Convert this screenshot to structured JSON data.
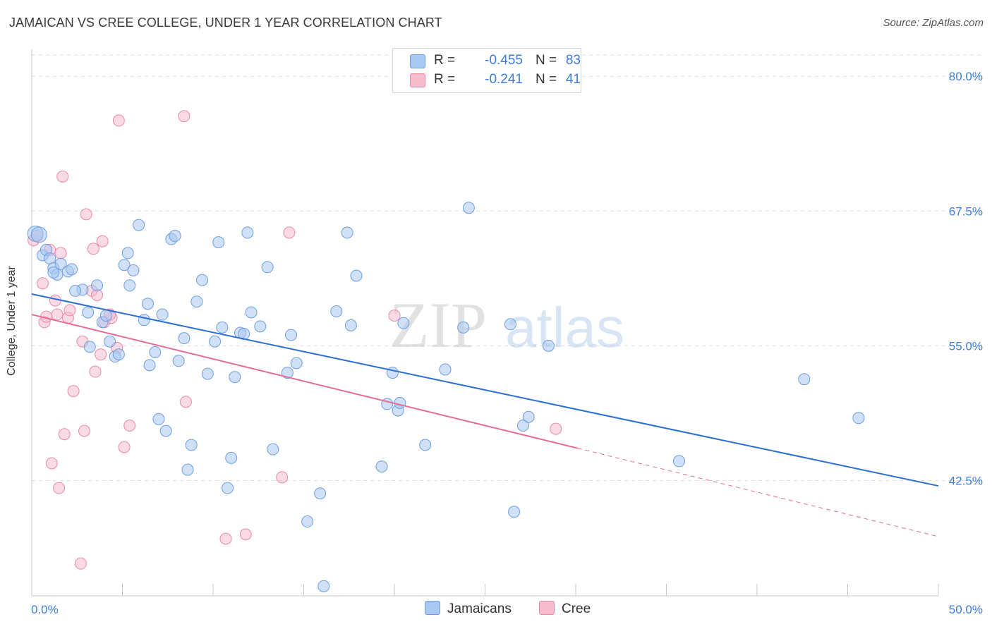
{
  "title": "JAMAICAN VS CREE COLLEGE, UNDER 1 YEAR CORRELATION CHART",
  "source": "Source: ZipAtlas.com",
  "watermark": {
    "zip": "ZIP",
    "atlas": "atlas"
  },
  "legend": {
    "rows": [
      {
        "r_label": "R =",
        "r_value": "-0.455",
        "n_label": "N =",
        "n_value": "83",
        "color": "#a9c8f0"
      },
      {
        "r_label": "R =",
        "r_value": "-0.241",
        "n_label": "N =",
        "n_value": "41",
        "color": "#f6bccd"
      }
    ]
  },
  "bottom_legend": {
    "series1": "Jamaicans",
    "series2": "Cree"
  },
  "colors": {
    "blue_fill": "#a9c8f0",
    "blue_stroke": "#6d9ee0",
    "blue_line": "#2b6fd1",
    "pink_fill": "#f6bccd",
    "pink_stroke": "#e98aa8",
    "pink_line": "#e56b97",
    "grid": "#dddddd",
    "axis_text": "#3b7dd8"
  },
  "chart_data": {
    "type": "scatter",
    "title": "JAMAICAN VS CREE COLLEGE, UNDER 1 YEAR CORRELATION CHART",
    "xlabel": "",
    "ylabel": "College, Under 1 year",
    "xlim": [
      0,
      50
    ],
    "ylim": [
      31.8,
      82.5
    ],
    "x_tick_labels": [
      "0.0%",
      "50.0%"
    ],
    "y_ticks": [
      42.5,
      55.0,
      67.5,
      80.0
    ],
    "y_tick_labels": [
      "42.5%",
      "55.0%",
      "67.5%",
      "80.0%"
    ],
    "series": [
      {
        "name": "Jamaicans",
        "R": -0.455,
        "N": 83,
        "trend": {
          "x": [
            0,
            50
          ],
          "y": [
            59.8,
            42.0
          ]
        },
        "points": [
          [
            0.2,
            65.4
          ],
          [
            0.4,
            65.3
          ],
          [
            0.6,
            63.4
          ],
          [
            0.8,
            63.9
          ],
          [
            1.0,
            63.1
          ],
          [
            1.2,
            62.2
          ],
          [
            1.4,
            61.6
          ],
          [
            1.6,
            62.6
          ],
          [
            2.0,
            61.9
          ],
          [
            2.2,
            62.1
          ],
          [
            2.8,
            60.2
          ],
          [
            2.4,
            60.1
          ],
          [
            3.1,
            58.1
          ],
          [
            3.2,
            54.9
          ],
          [
            3.6,
            60.6
          ],
          [
            3.9,
            57.2
          ],
          [
            4.1,
            57.8
          ],
          [
            4.3,
            55.4
          ],
          [
            4.6,
            54.0
          ],
          [
            4.8,
            54.2
          ],
          [
            5.1,
            62.5
          ],
          [
            5.3,
            63.6
          ],
          [
            5.4,
            60.6
          ],
          [
            5.6,
            62.0
          ],
          [
            5.9,
            66.2
          ],
          [
            6.2,
            57.4
          ],
          [
            6.4,
            58.9
          ],
          [
            6.5,
            53.2
          ],
          [
            6.8,
            54.4
          ],
          [
            7.0,
            48.2
          ],
          [
            7.2,
            57.9
          ],
          [
            7.4,
            47.1
          ],
          [
            7.7,
            64.9
          ],
          [
            7.9,
            65.2
          ],
          [
            8.1,
            53.6
          ],
          [
            8.4,
            55.7
          ],
          [
            8.6,
            43.5
          ],
          [
            8.8,
            45.8
          ],
          [
            9.1,
            59.1
          ],
          [
            9.4,
            61.1
          ],
          [
            9.7,
            52.4
          ],
          [
            10.1,
            55.4
          ],
          [
            10.3,
            64.6
          ],
          [
            10.5,
            56.7
          ],
          [
            10.8,
            41.8
          ],
          [
            11.0,
            44.6
          ],
          [
            11.2,
            52.1
          ],
          [
            11.5,
            56.2
          ],
          [
            11.7,
            56.1
          ],
          [
            11.9,
            65.5
          ],
          [
            12.1,
            58.1
          ],
          [
            12.6,
            56.8
          ],
          [
            13.0,
            62.3
          ],
          [
            13.3,
            45.4
          ],
          [
            14.1,
            52.5
          ],
          [
            14.3,
            56.0
          ],
          [
            14.6,
            53.4
          ],
          [
            15.2,
            38.7
          ],
          [
            15.9,
            41.3
          ],
          [
            16.1,
            32.7
          ],
          [
            16.8,
            58.2
          ],
          [
            17.4,
            65.5
          ],
          [
            17.6,
            56.9
          ],
          [
            17.9,
            61.5
          ],
          [
            19.3,
            43.8
          ],
          [
            19.6,
            49.6
          ],
          [
            19.9,
            52.5
          ],
          [
            20.2,
            49.0
          ],
          [
            20.3,
            49.7
          ],
          [
            20.5,
            57.1
          ],
          [
            21.7,
            45.8
          ],
          [
            22.8,
            52.8
          ],
          [
            23.8,
            56.7
          ],
          [
            24.1,
            67.8
          ],
          [
            26.4,
            57.0
          ],
          [
            26.6,
            39.6
          ],
          [
            27.1,
            47.6
          ],
          [
            27.4,
            48.4
          ],
          [
            28.5,
            55.0
          ],
          [
            35.7,
            44.3
          ],
          [
            42.6,
            51.9
          ],
          [
            45.6,
            48.3
          ],
          [
            1.2,
            61.8
          ]
        ]
      },
      {
        "name": "Cree",
        "R": -0.241,
        "N": 41,
        "trend_solid": {
          "x": [
            0,
            30.1
          ],
          "y": [
            57.9,
            45.5
          ]
        },
        "trend_dashed": {
          "x": [
            30.1,
            50
          ],
          "y": [
            45.5,
            37.3
          ]
        },
        "points": [
          [
            0.1,
            64.8
          ],
          [
            0.3,
            65.2
          ],
          [
            0.6,
            60.8
          ],
          [
            0.7,
            57.2
          ],
          [
            0.8,
            57.7
          ],
          [
            1.0,
            63.9
          ],
          [
            1.1,
            44.1
          ],
          [
            1.3,
            59.2
          ],
          [
            1.4,
            57.9
          ],
          [
            1.5,
            41.8
          ],
          [
            1.6,
            63.6
          ],
          [
            1.7,
            70.7
          ],
          [
            1.8,
            46.8
          ],
          [
            2.0,
            57.6
          ],
          [
            2.1,
            58.3
          ],
          [
            2.3,
            50.8
          ],
          [
            2.7,
            34.8
          ],
          [
            2.8,
            55.4
          ],
          [
            2.9,
            47.1
          ],
          [
            3.0,
            67.2
          ],
          [
            3.3,
            60.1
          ],
          [
            3.4,
            64.0
          ],
          [
            3.5,
            52.6
          ],
          [
            3.6,
            59.7
          ],
          [
            3.8,
            54.2
          ],
          [
            3.9,
            64.7
          ],
          [
            4.0,
            57.2
          ],
          [
            4.4,
            57.6
          ],
          [
            4.7,
            54.8
          ],
          [
            5.1,
            45.6
          ],
          [
            5.4,
            47.6
          ],
          [
            4.8,
            75.9
          ],
          [
            8.4,
            76.3
          ],
          [
            8.5,
            49.8
          ],
          [
            10.7,
            37.1
          ],
          [
            11.8,
            37.5
          ],
          [
            13.8,
            42.8
          ],
          [
            14.2,
            65.5
          ],
          [
            20.0,
            57.8
          ],
          [
            28.9,
            47.3
          ],
          [
            4.3,
            57.9
          ]
        ]
      }
    ]
  }
}
